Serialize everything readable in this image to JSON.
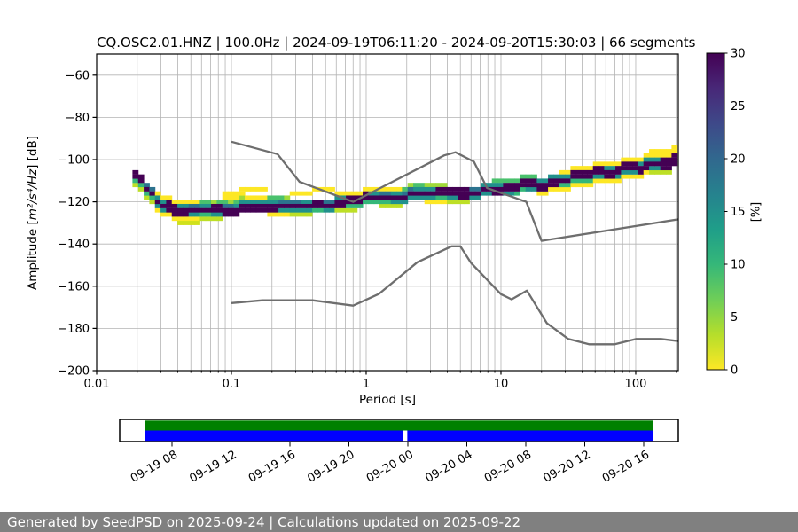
{
  "title": "CQ.OSC2.01.HNZ | 100.0Hz | 2024-09-19T06:11:20 - 2024-09-20T15:30:03 | 66 segments",
  "footer": {
    "text": "Generated by SeedPSD on 2025-09-24 | Calculations updated on 2025-09-22"
  },
  "chart_data": {
    "type": "heatmap",
    "title": "CQ.OSC2.01.HNZ | 100.0Hz | 2024-09-19T06:11:20 - 2024-09-20T15:30:03 | 66 segments",
    "xlabel": "Period [s]",
    "ylabel_prefix": "Amplitude [",
    "ylabel_math": "m²/s⁴/Hz",
    "ylabel_suffix": "] [dB]",
    "x_scale": "log",
    "xlim": [
      0.01,
      207
    ],
    "ylim": [
      -200,
      -50
    ],
    "grid": true,
    "x_tick_values": [
      0.01,
      0.1,
      1,
      10,
      100
    ],
    "x_tick_labels": [
      "0.01",
      "0.1",
      "1",
      "10",
      "100"
    ],
    "y_tick_values": [
      -60,
      -80,
      -100,
      -120,
      -140,
      -160,
      -180,
      -200
    ],
    "y_tick_labels": [
      "−60",
      "−80",
      "−100",
      "−120",
      "−140",
      "−160",
      "−180",
      "−200"
    ],
    "colorbar": {
      "label": "[%]",
      "colormap": "viridis_r",
      "vmin": 0,
      "vmax": 30,
      "tick_values": [
        0,
        5,
        10,
        15,
        20,
        25,
        30
      ],
      "tick_labels": [
        "0",
        "5",
        "10",
        "15",
        "20",
        "25",
        "30"
      ]
    },
    "psd_mode_curve": {
      "comment": "mode (highest-probability) PSD amplitude of the 66-segment histogram",
      "periods": [
        0.019,
        0.021,
        0.024,
        0.027,
        0.03,
        0.034,
        0.04,
        0.055,
        0.08,
        0.12,
        0.2,
        0.3,
        0.45,
        0.6,
        0.8,
        1.0,
        1.4,
        2.0,
        3.0,
        4.5,
        6.5,
        9,
        12,
        16,
        22,
        30,
        45,
        65,
        90,
        130,
        180,
        207
      ],
      "db": [
        -107.5,
        -110,
        -114,
        -117.5,
        -120.5,
        -122.5,
        -123.5,
        -124,
        -124,
        -123,
        -122.5,
        -122,
        -121.5,
        -121,
        -120,
        -118.5,
        -117.5,
        -117,
        -116.3,
        -115.8,
        -115.3,
        -114.5,
        -113.5,
        -112.3,
        -111,
        -109.5,
        -107.5,
        -105.8,
        -104.3,
        -102.5,
        -101.2,
        -100.7
      ]
    },
    "spread": {
      "inner_db": 2,
      "outer_db": 4,
      "extra_upper_ranges": [
        [
          0.09,
          0.6
        ],
        [
          90,
          207
        ]
      ],
      "extra_lower_ranges": [
        [
          0.035,
          0.12
        ]
      ]
    },
    "noise_models": {
      "color": "#6e6e6e",
      "nhnm": {
        "periods": [
          0.1,
          0.22,
          0.32,
          0.8,
          3.8,
          4.6,
          6.3,
          7.9,
          15.4,
          20.0,
          207
        ],
        "db": [
          -91.5,
          -97.4,
          -110.5,
          -120.0,
          -98.0,
          -96.5,
          -101.0,
          -113.5,
          -120.0,
          -138.5,
          -128.3
        ]
      },
      "nlnm": {
        "periods": [
          0.1,
          0.17,
          0.4,
          0.8,
          1.24,
          2.4,
          4.3,
          5.0,
          6.0,
          10.0,
          12.0,
          15.6,
          21.9,
          31.6,
          45.0,
          70.0,
          101.0,
          154.0,
          207
        ],
        "db": [
          -168.0,
          -166.7,
          -166.7,
          -169.2,
          -163.7,
          -148.6,
          -141.1,
          -141.1,
          -149.0,
          -163.8,
          -166.2,
          -162.1,
          -177.5,
          -185.0,
          -187.5,
          -187.5,
          -185.0,
          -185.0,
          -186.0
        ]
      }
    }
  },
  "timeline": {
    "tick_labels": [
      "09-19 08",
      "09-19 12",
      "09-19 16",
      "09-19 20",
      "09-20 00",
      "09-20 04",
      "09-20 08",
      "09-20 12",
      "09-20 16"
    ],
    "coverage_color": "#008000",
    "availability_color": "#0000ff",
    "gap_frac": 0.512
  }
}
